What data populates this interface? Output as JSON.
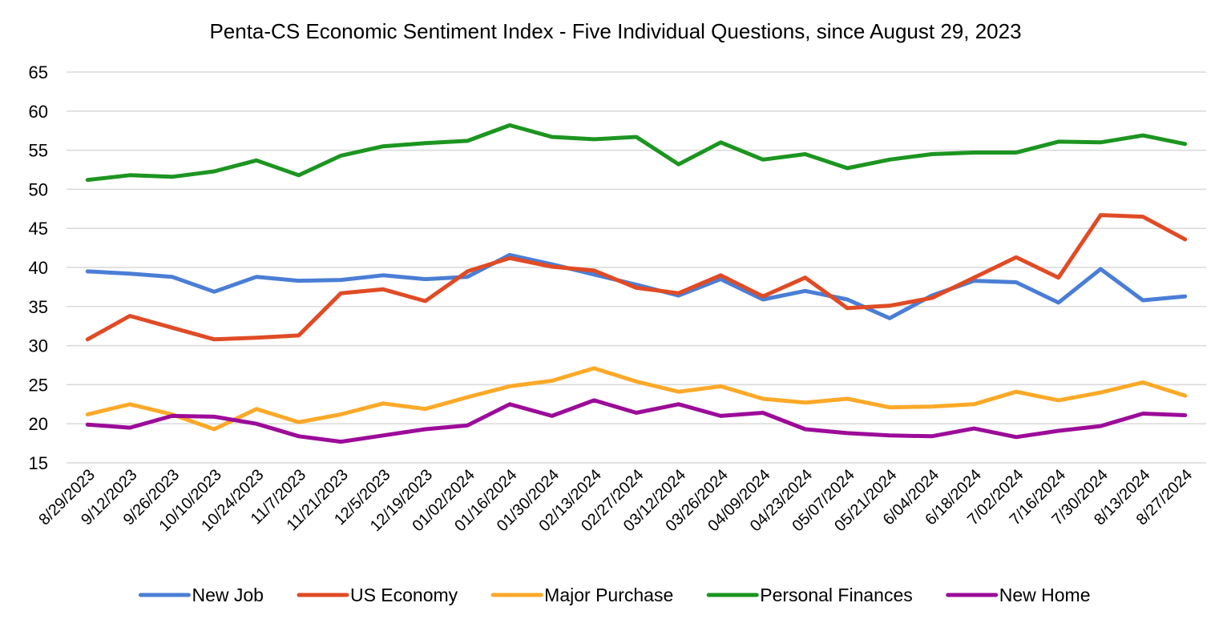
{
  "chart_data": {
    "type": "line",
    "title": "Penta-CS Economic Sentiment Index - Five Individual Questions, since August 29, 2023",
    "xlabel": "",
    "ylabel": "",
    "ylim": [
      15,
      65
    ],
    "yticks": [
      15,
      20,
      25,
      30,
      35,
      40,
      45,
      50,
      55,
      60,
      65
    ],
    "grid": true,
    "legend_position": "bottom",
    "categories": [
      "8/29/2023",
      "9/12/2023",
      "9/26/2023",
      "10/10/2023",
      "10/24/2023",
      "11/7/2023",
      "11/21/2023",
      "12/5/2023",
      "12/19/2023",
      "01/02/2024",
      "01/16/2024",
      "01/30/2024",
      "02/13/2024",
      "02/27/2024",
      "03/12/2024",
      "03/26/2024",
      "04/09/2024",
      "04/23/2024",
      "05/07/2024",
      "05/21/2024",
      "6/04/2024",
      "6/18/2024",
      "7/02/2024",
      "7/16/2024",
      "7/30/2024",
      "8/13/2024",
      "8/27/2024"
    ],
    "series": [
      {
        "name": "New Job",
        "color": "#4a7ed6",
        "values": [
          39.5,
          39.2,
          38.8,
          36.9,
          38.8,
          38.3,
          38.4,
          39.0,
          38.5,
          38.8,
          41.6,
          40.4,
          39.1,
          37.8,
          36.4,
          38.5,
          35.9,
          37.0,
          35.9,
          33.5,
          36.4,
          38.3,
          38.1,
          35.5,
          39.8,
          35.8,
          36.3
        ]
      },
      {
        "name": "US Economy",
        "color": "#e04b25",
        "values": [
          30.8,
          33.8,
          32.3,
          30.8,
          31.0,
          31.3,
          36.7,
          37.2,
          35.7,
          39.5,
          41.2,
          40.1,
          39.6,
          37.4,
          36.7,
          39.0,
          36.3,
          38.7,
          34.8,
          35.1,
          36.1,
          38.7,
          41.3,
          38.7,
          46.7,
          46.5,
          43.6
        ]
      },
      {
        "name": "Major Purchase",
        "color": "#fba928",
        "values": [
          21.2,
          22.5,
          21.2,
          19.3,
          21.9,
          20.2,
          21.2,
          22.6,
          21.9,
          23.4,
          24.8,
          25.5,
          27.1,
          25.4,
          24.1,
          24.8,
          23.2,
          22.7,
          23.2,
          22.1,
          22.2,
          22.5,
          24.1,
          23.0,
          24.0,
          25.3,
          23.6
        ]
      },
      {
        "name": "Personal Finances",
        "color": "#1c9520",
        "values": [
          51.2,
          51.8,
          51.6,
          52.3,
          53.7,
          51.8,
          54.3,
          55.5,
          55.9,
          56.2,
          58.2,
          56.7,
          56.4,
          56.7,
          53.2,
          56.0,
          53.8,
          54.5,
          52.7,
          53.8,
          54.5,
          54.7,
          54.7,
          56.1,
          56.0,
          56.9,
          55.8
        ]
      },
      {
        "name": "New Home",
        "color": "#9c0b99",
        "values": [
          19.9,
          19.5,
          21.0,
          20.9,
          20.0,
          18.4,
          17.7,
          18.5,
          19.3,
          19.8,
          22.5,
          21.0,
          23.0,
          21.4,
          22.5,
          21.0,
          21.4,
          19.3,
          18.8,
          18.5,
          18.4,
          19.4,
          18.3,
          19.1,
          19.7,
          21.3,
          21.1
        ]
      }
    ]
  }
}
